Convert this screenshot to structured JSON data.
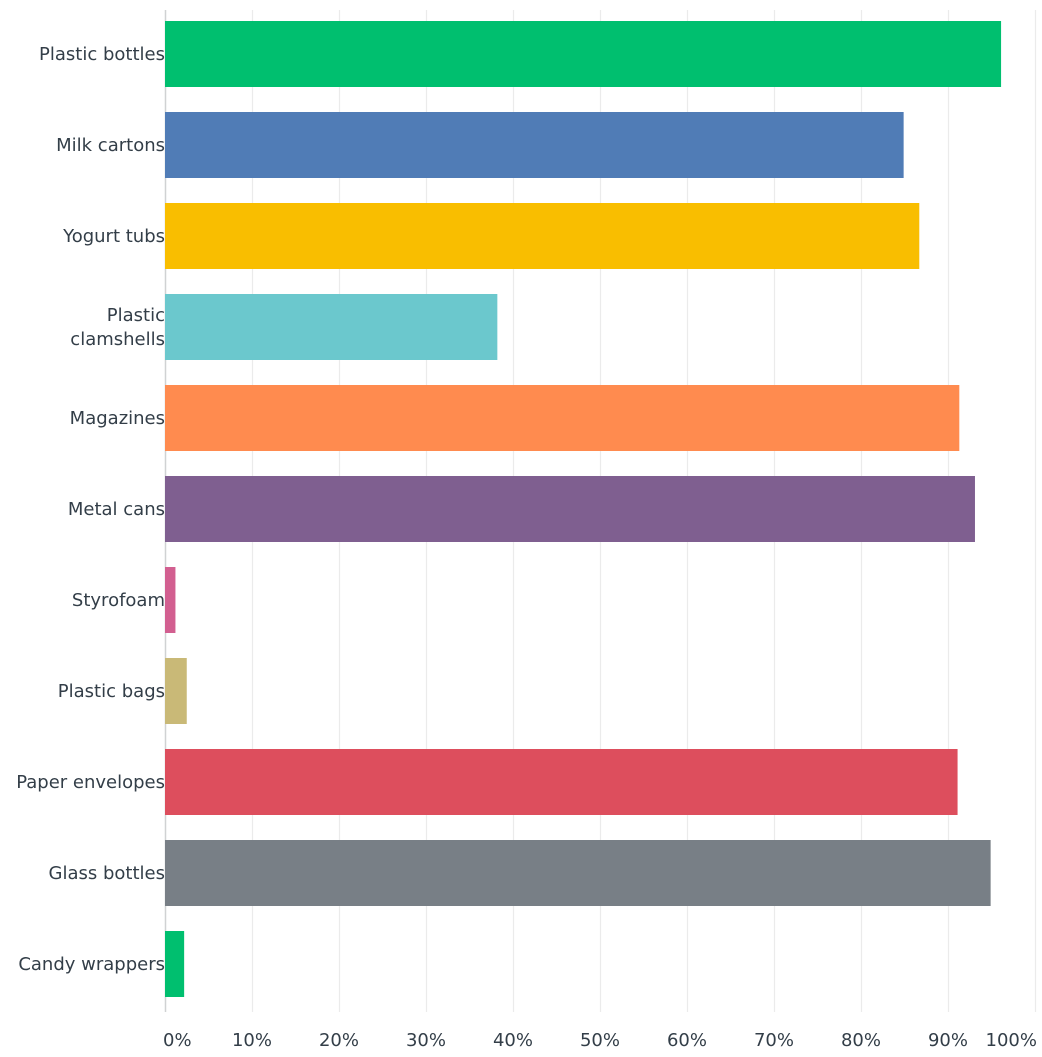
{
  "chart_data": {
    "type": "bar",
    "orientation": "horizontal",
    "title": "",
    "xlabel": "",
    "ylabel": "",
    "categories": [
      "Plastic bottles",
      "Milk cartons",
      "Yogurt tubs",
      "Plastic clamshells",
      "Magazines",
      "Metal cans",
      "Styrofoam",
      "Plastic bags",
      "Paper envelopes",
      "Glass bottles",
      "Candy wrappers"
    ],
    "values": [
      96.1,
      84.9,
      86.7,
      38.2,
      91.3,
      93.1,
      1.2,
      2.5,
      91.1,
      94.9,
      2.2
    ],
    "colors": [
      "#00bf6f",
      "#507cb6",
      "#f9be00",
      "#6bc8cd",
      "#ff8b4f",
      "#7f5f90",
      "#d25f90",
      "#c9b977",
      "#dd4e5d",
      "#787f86",
      "#00bf6f"
    ],
    "xlim": [
      0,
      100
    ],
    "ticks": [
      "0%",
      "10%",
      "20%",
      "30%",
      "40%",
      "50%",
      "60%",
      "70%",
      "80%",
      "90%",
      "100%"
    ],
    "grid": true,
    "legend": "none"
  }
}
